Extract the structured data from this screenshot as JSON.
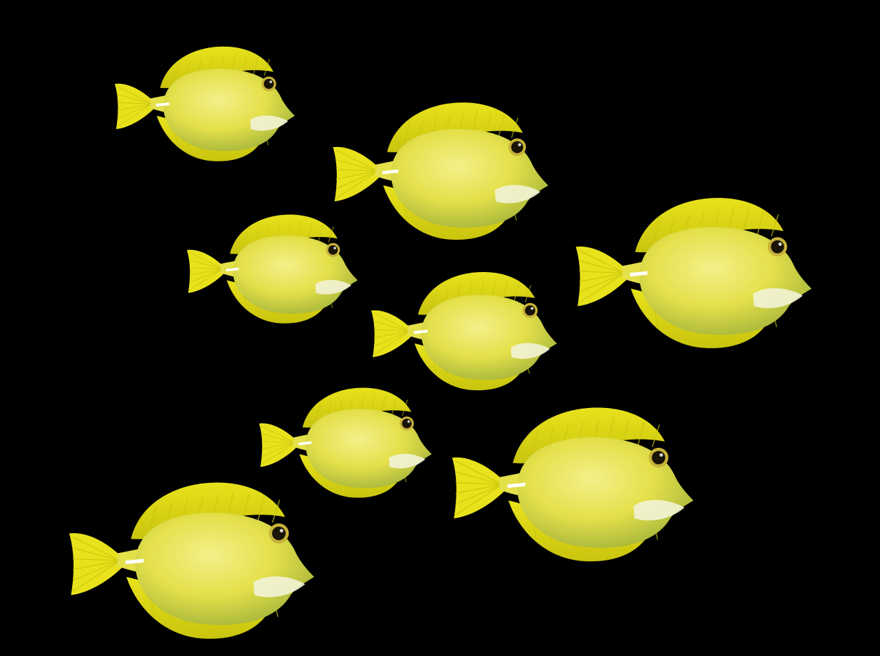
{
  "scene": {
    "subject": "yellow-tang-fish",
    "fish_count": 8,
    "background_color": "#000000",
    "colors": {
      "body_light": "#f4f08a",
      "body_mid": "#e4e04a",
      "body_shade": "#a9b83c",
      "fin": "#e8e21c",
      "fin_rib": "#c9c40e",
      "pectoral": "#f2f3d6",
      "eye_ring": "#c8b23a",
      "eye": "#1a1406",
      "spine_mark": "#ffffff"
    }
  }
}
